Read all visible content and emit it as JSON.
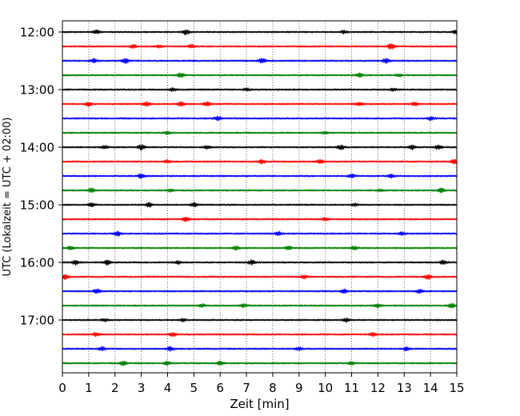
{
  "chart_data": {
    "type": "line",
    "xlabel": "Zeit  [min]",
    "ylabel": "UTC (Lokalzeit = UTC + 02:00)",
    "xlim": [
      0,
      15
    ],
    "x_ticks": [
      0,
      1,
      2,
      3,
      4,
      5,
      6,
      7,
      8,
      9,
      10,
      11,
      12,
      13,
      14,
      15
    ],
    "x_grid": "dotted vertical lines at each minute",
    "y_ticks": [
      "12:00",
      "13:00",
      "14:00",
      "15:00",
      "16:00",
      "17:00"
    ],
    "trace_colors": [
      "#000000",
      "#ff0000",
      "#0000ff",
      "#008000"
    ],
    "trace_interval_minutes": 15,
    "traces": [
      {
        "start": "12:00",
        "color": "#000000",
        "events": [
          [
            1.3,
            2.2
          ],
          [
            4.7,
            2.8
          ],
          [
            10.7,
            1.6
          ],
          [
            15.0,
            3.0
          ]
        ]
      },
      {
        "start": "12:15",
        "color": "#ff0000",
        "events": [
          [
            2.7,
            1.8
          ],
          [
            3.7,
            1.4
          ],
          [
            4.9,
            2.2
          ],
          [
            12.5,
            3.2
          ]
        ]
      },
      {
        "start": "12:30",
        "color": "#0000ff",
        "events": [
          [
            1.2,
            2.2
          ],
          [
            2.4,
            2.8
          ],
          [
            7.6,
            2.8
          ],
          [
            12.3,
            2.6
          ]
        ]
      },
      {
        "start": "12:45",
        "color": "#008000",
        "events": [
          [
            4.5,
            2.6
          ],
          [
            11.3,
            2.0
          ],
          [
            12.8,
            1.4
          ]
        ]
      },
      {
        "start": "13:00",
        "color": "#000000",
        "events": [
          [
            4.2,
            1.6
          ],
          [
            7.0,
            1.4
          ],
          [
            12.6,
            1.4
          ]
        ]
      },
      {
        "start": "13:15",
        "color": "#ff0000",
        "events": [
          [
            1.0,
            2.4
          ],
          [
            3.2,
            2.6
          ],
          [
            4.5,
            2.4
          ],
          [
            5.5,
            2.6
          ],
          [
            11.3,
            2.0
          ],
          [
            13.4,
            2.0
          ]
        ]
      },
      {
        "start": "13:30",
        "color": "#0000ff",
        "events": [
          [
            5.9,
            2.4
          ],
          [
            14.0,
            1.8
          ]
        ]
      },
      {
        "start": "13:45",
        "color": "#008000",
        "events": [
          [
            4.0,
            1.6
          ],
          [
            10.0,
            1.6
          ]
        ]
      },
      {
        "start": "14:00",
        "color": "#000000",
        "events": [
          [
            1.6,
            1.8
          ],
          [
            3.0,
            3.0
          ],
          [
            5.5,
            1.8
          ],
          [
            10.6,
            2.6
          ],
          [
            13.3,
            2.6
          ],
          [
            14.3,
            2.6
          ]
        ]
      },
      {
        "start": "14:15",
        "color": "#ff0000",
        "events": [
          [
            4.0,
            1.4
          ],
          [
            7.6,
            2.4
          ],
          [
            9.8,
            2.4
          ],
          [
            14.9,
            2.4
          ]
        ]
      },
      {
        "start": "14:30",
        "color": "#0000ff",
        "events": [
          [
            3.0,
            2.4
          ],
          [
            11.0,
            1.8
          ],
          [
            12.5,
            2.0
          ]
        ]
      },
      {
        "start": "14:45",
        "color": "#008000",
        "events": [
          [
            1.1,
            2.2
          ],
          [
            4.1,
            1.4
          ],
          [
            12.1,
            1.4
          ],
          [
            14.4,
            2.4
          ]
        ]
      },
      {
        "start": "15:00",
        "color": "#000000",
        "events": [
          [
            1.1,
            2.0
          ],
          [
            3.3,
            2.4
          ],
          [
            5.0,
            2.4
          ],
          [
            11.1,
            1.6
          ]
        ]
      },
      {
        "start": "15:15",
        "color": "#ff0000",
        "events": [
          [
            4.7,
            2.4
          ],
          [
            10.0,
            1.6
          ]
        ]
      },
      {
        "start": "15:30",
        "color": "#0000ff",
        "events": [
          [
            2.1,
            2.4
          ],
          [
            8.2,
            2.2
          ],
          [
            12.9,
            2.0
          ]
        ]
      },
      {
        "start": "15:45",
        "color": "#008000",
        "events": [
          [
            0.3,
            2.4
          ],
          [
            6.6,
            2.0
          ],
          [
            8.6,
            2.0
          ],
          [
            11.1,
            2.0
          ]
        ]
      },
      {
        "start": "16:00",
        "color": "#000000",
        "events": [
          [
            0.5,
            2.6
          ],
          [
            1.7,
            2.6
          ],
          [
            4.4,
            1.8
          ],
          [
            7.2,
            2.6
          ],
          [
            14.5,
            2.2
          ]
        ]
      },
      {
        "start": "16:15",
        "color": "#ff0000",
        "events": [
          [
            0.1,
            2.6
          ],
          [
            9.2,
            2.4
          ],
          [
            13.9,
            2.6
          ]
        ]
      },
      {
        "start": "16:30",
        "color": "#0000ff",
        "events": [
          [
            1.3,
            2.6
          ],
          [
            10.7,
            2.2
          ],
          [
            13.6,
            2.4
          ]
        ]
      },
      {
        "start": "16:45",
        "color": "#008000",
        "events": [
          [
            5.3,
            2.0
          ],
          [
            6.9,
            2.0
          ],
          [
            12.0,
            2.0
          ],
          [
            14.8,
            2.4
          ]
        ]
      },
      {
        "start": "17:00",
        "color": "#000000",
        "events": [
          [
            1.6,
            1.8
          ],
          [
            4.6,
            1.6
          ],
          [
            10.8,
            2.2
          ]
        ]
      },
      {
        "start": "17:15",
        "color": "#ff0000",
        "events": [
          [
            1.3,
            2.2
          ],
          [
            4.2,
            2.2
          ],
          [
            11.8,
            1.8
          ]
        ]
      },
      {
        "start": "17:30",
        "color": "#0000ff",
        "events": [
          [
            1.5,
            2.2
          ],
          [
            4.1,
            2.2
          ],
          [
            9.0,
            1.6
          ],
          [
            13.1,
            2.2
          ]
        ]
      },
      {
        "start": "17:45",
        "color": "#008000",
        "events": [
          [
            2.3,
            2.2
          ],
          [
            4.0,
            2.0
          ],
          [
            6.0,
            2.0
          ],
          [
            11.0,
            1.6
          ]
        ]
      }
    ]
  }
}
